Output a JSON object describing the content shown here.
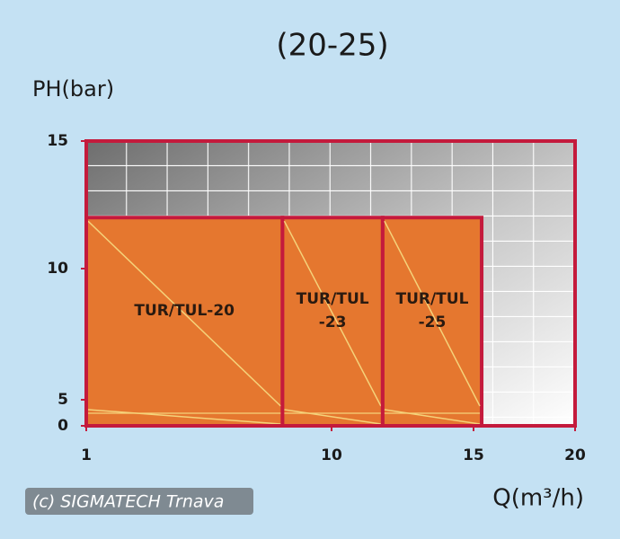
{
  "chart_data": {
    "type": "region",
    "title": "(20-25)",
    "y_label": "PH(bar)",
    "x_label": "Q(m³/h)",
    "watermark": "(c) SIGMATECH Trnava",
    "xlim": [
      1,
      20
    ],
    "xticks": [
      1,
      10,
      15,
      20
    ],
    "ylim": [
      0,
      15
    ],
    "yticks": [
      0,
      5,
      10,
      15
    ],
    "color": "#e5772f",
    "edge_color": "#c41a3c",
    "regions": [
      {
        "label": [
          "TUR/TUL-20"
        ],
        "x": [
          1,
          8.2
        ],
        "y": [
          0,
          12
        ]
      },
      {
        "label": [
          "TUR/TUL",
          "-23"
        ],
        "x": [
          8.2,
          11.8
        ],
        "y": [
          0,
          12
        ]
      },
      {
        "label": [
          "TUR/TUL",
          "-25"
        ],
        "x": [
          11.8,
          15.4
        ],
        "y": [
          0,
          12
        ]
      }
    ]
  }
}
